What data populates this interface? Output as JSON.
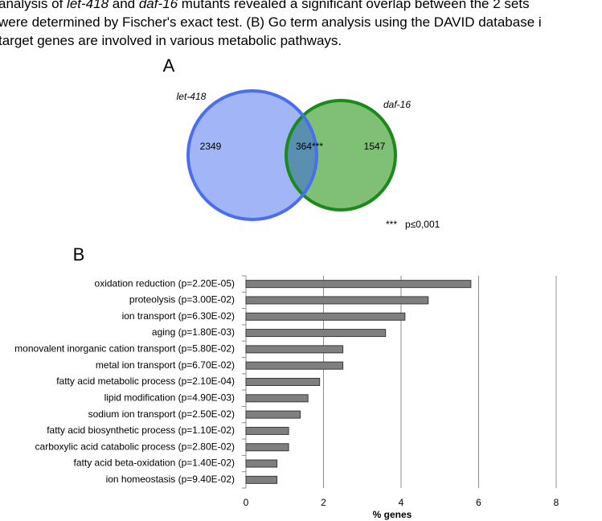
{
  "caption": [
    [
      "analysis of ",
      "let-418",
      " and ",
      "daf-16",
      " mutants revealed a significant overlap between the 2 sets"
    ],
    [
      "were determined by Fischer's exact test. (B) Go term analysis using the DAVID database i"
    ],
    [
      "target genes are involved in various metabolic pathways."
    ]
  ],
  "chart_data": [
    {
      "type": "venn",
      "panel": "A",
      "sets": [
        {
          "name": "let-418",
          "color": "#4a6ef0",
          "values": [
            2349
          ]
        },
        {
          "name": "daf-16",
          "color": "#1a8a1a",
          "values": [
            1547
          ]
        }
      ],
      "intersection": {
        "value": 364,
        "label": "364***"
      },
      "annotation": "***   p≤0,001"
    },
    {
      "type": "bar",
      "panel": "B",
      "orientation": "horizontal",
      "color": "#7f7f7f",
      "categories": [
        "oxidation reduction (p=2.20E-05)",
        "proteolysis (p=3.00E-02)",
        "ion transport (p=6.30E-02)",
        "aging (p=1.80E-03)",
        "monovalent inorganic cation transport (p=5.80E-02)",
        "metal ion transport (p=6.70E-02)",
        "fatty acid metabolic process (p=2.10E-04)",
        "lipid modification (p=4.90E-03)",
        "sodium ion transport (p=2.50E-02)",
        "fatty acid biosynthetic process (p=1.10E-02)",
        "carboxylic acid catabolic process (p=2.80E-02)",
        "fatty acid beta-oxidation (p=1.40E-02)",
        "ion homeostasis (p=9.40E-02)"
      ],
      "values": [
        5.8,
        4.7,
        4.1,
        3.6,
        2.5,
        2.5,
        1.9,
        1.6,
        1.4,
        1.1,
        1.1,
        0.8,
        0.8
      ],
      "xlim": [
        0,
        8
      ],
      "xticks": [
        0,
        2,
        4,
        6,
        8
      ],
      "xlabel": "% genes",
      "grid": true
    }
  ]
}
